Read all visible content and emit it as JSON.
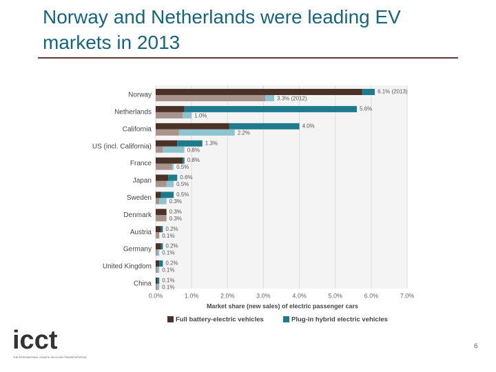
{
  "title": "Norway and Netherlands were leading EV markets in 2013",
  "page_number": "6",
  "logo": {
    "name": "icct",
    "tagline": "THE INTERNATIONAL COUNCIL ON CLEAN TRANSPORTATION"
  },
  "chart_data": {
    "type": "stacked_bar_horizontal",
    "xlabel": "Market share (new sales) of electric passenger cars",
    "categories": [
      "Norway",
      "Netherlands",
      "California",
      "US (incl. California)",
      "France",
      "Japan",
      "Sweden",
      "Denmark",
      "Austria",
      "Germany",
      "United Kingdom",
      "China"
    ],
    "series": [
      {
        "name": "Full battery-electric vehicles",
        "color": "#4a3228",
        "color_2012": "#a8948c",
        "values": [
          5.75,
          0.8,
          2.05,
          0.6,
          0.75,
          0.35,
          0.15,
          0.3,
          0.15,
          0.15,
          0.1,
          0.05
        ],
        "values_2012": [
          3.05,
          0.75,
          0.65,
          0.2,
          0.45,
          0.3,
          0.1,
          0.3,
          0.1,
          0.05,
          0.05,
          0.05
        ]
      },
      {
        "name": "Plug-in hybrid electric vehicles",
        "color": "#1f7a8c",
        "color_2012": "#8ec3cf",
        "values": [
          0.35,
          4.8,
          1.95,
          0.7,
          0.05,
          0.25,
          0.35,
          0.0,
          0.05,
          0.05,
          0.1,
          0.05
        ],
        "values_2012": [
          0.25,
          0.25,
          1.55,
          0.6,
          0.05,
          0.2,
          0.2,
          0.0,
          0.0,
          0.05,
          0.05,
          0.05
        ]
      }
    ],
    "totals": [
      6.1,
      5.6,
      4.0,
      1.3,
      0.8,
      0.6,
      0.5,
      0.3,
      0.2,
      0.2,
      0.2,
      0.1
    ],
    "total_labels": [
      "6.1% (2013)",
      "5.6%",
      "4.0%",
      "1.3%",
      "0.8%",
      "0.6%",
      "0.5%",
      "0.3%",
      "0.2%",
      "0.2%",
      "0.2%",
      "0.1%"
    ],
    "totals_2012": [
      3.3,
      1.0,
      2.2,
      0.8,
      0.5,
      0.5,
      0.3,
      0.3,
      0.1,
      0.1,
      0.1,
      0.1
    ],
    "total_labels_2012": [
      "3.3% (2012)",
      "1.0%",
      "2.2%",
      "0.8%",
      "0.5%",
      "0.5%",
      "0.3%",
      "0.3%",
      "0.1%",
      "0.1%",
      "0.1%",
      "0.1%"
    ],
    "xlim": [
      0,
      7
    ],
    "xticks": [
      {
        "value": 0,
        "label": "0.0%"
      },
      {
        "value": 1,
        "label": "1.0%"
      },
      {
        "value": 2,
        "label": "2.0%"
      },
      {
        "value": 3,
        "label": "3.0%"
      },
      {
        "value": 4,
        "label": "4.0%"
      },
      {
        "value": 5,
        "label": "5.0%"
      },
      {
        "value": 6,
        "label": "6.0%"
      },
      {
        "value": 7,
        "label": "7.0%"
      }
    ],
    "grid": true
  }
}
